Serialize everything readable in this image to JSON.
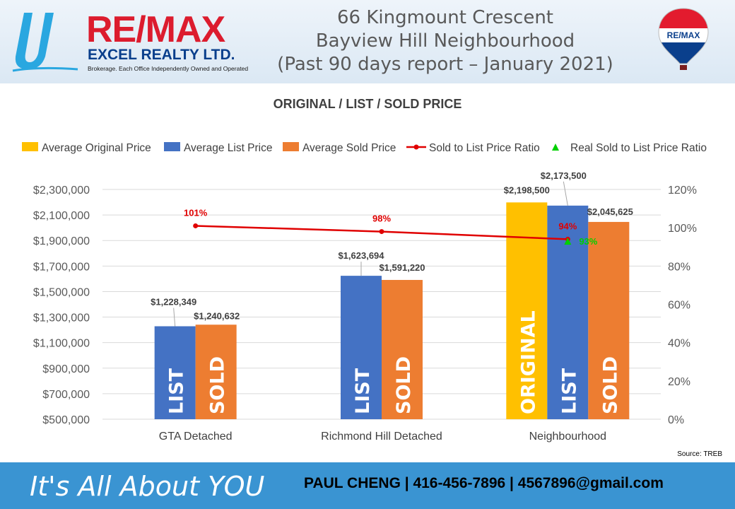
{
  "header": {
    "logo_letter": "U",
    "brand_name": "RE/MAX",
    "brand_sub": "EXCEL REALTY LTD.",
    "brand_tagline": "Brokerage. Each Office Independently Owned and Operated",
    "title_lines": [
      "66 Kingmount Crescent",
      "Bayview Hill Neighbourhood",
      "(Past 90 days report – January 2021)"
    ],
    "balloon_text": "RE/MAX"
  },
  "chart_data": {
    "type": "bar",
    "title": "ORIGINAL / LIST / SOLD PRICE",
    "categories": [
      "GTA Detached",
      "Richmond Hill Detached",
      "Neighbourhood"
    ],
    "series": [
      {
        "name": "Average Original Price",
        "color": "#ffc000",
        "values": [
          null,
          null,
          2198500
        ],
        "labels": [
          null,
          null,
          "$2,198,500"
        ],
        "bar_text": [
          null,
          null,
          "ORIGINAL"
        ]
      },
      {
        "name": "Average List Price",
        "color": "#4472c4",
        "values": [
          1228349,
          1623694,
          2173500
        ],
        "labels": [
          "$1,228,349",
          "$1,623,694",
          "$2,173,500"
        ],
        "bar_text": [
          "LIST",
          "LIST",
          "LIST"
        ]
      },
      {
        "name": "Average Sold Price",
        "color": "#ed7d31",
        "values": [
          1240632,
          1591220,
          2045625
        ],
        "labels": [
          "$1,240,632",
          "$1,591,220",
          "$2,045,625"
        ],
        "bar_text": [
          "SOLD",
          "SOLD",
          "SOLD"
        ]
      }
    ],
    "line_series": [
      {
        "name": "Sold to List Price Ratio",
        "color": "#e00000",
        "axis": "right",
        "values": [
          101,
          98,
          94
        ],
        "labels": [
          "101%",
          "98%",
          "94%"
        ]
      },
      {
        "name": "Real Sold to List Price Ratio",
        "color": "#00d000",
        "axis": "right",
        "marker": "triangle",
        "values": [
          null,
          null,
          93
        ],
        "labels": [
          null,
          null,
          "93%"
        ]
      }
    ],
    "y_left": {
      "min": 500000,
      "max": 2300000,
      "step": 200000,
      "ticks": [
        "$500,000",
        "$700,000",
        "$900,000",
        "$1,100,000",
        "$1,300,000",
        "$1,500,000",
        "$1,700,000",
        "$1,900,000",
        "$2,100,000",
        "$2,300,000"
      ]
    },
    "y_right": {
      "min": 0,
      "max": 120,
      "step": 20,
      "ticks": [
        "0%",
        "20%",
        "40%",
        "60%",
        "80%",
        "100%",
        "120%"
      ]
    },
    "grid": true,
    "legend_position": "top",
    "source": "Source: TREB"
  },
  "footer": {
    "slogan": "It's All About YOU",
    "contact": "PAUL CHENG | 416-456-7896 | 4567896@gmail.com"
  }
}
